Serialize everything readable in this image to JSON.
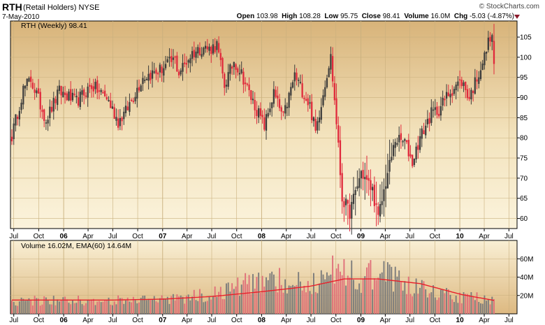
{
  "header": {
    "symbol": "RTH",
    "name": "(Retail Holders)",
    "exchange": "NYSE",
    "date": "7-May-2010",
    "brand": "© StockCharts.com",
    "open_label": "Open",
    "open": "103.98",
    "high_label": "High",
    "high": "108.28",
    "low_label": "Low",
    "low": "95.75",
    "close_label": "Close",
    "close": "98.41",
    "volume_label": "Volume",
    "volume": "16.0M",
    "chg_label": "Chg",
    "chg": "-5.03 (-4.87%)"
  },
  "chart_data": [
    {
      "type": "candlestick",
      "legend": "RTH (Weekly) 98.41",
      "yticks": [
        60,
        65,
        70,
        75,
        80,
        85,
        90,
        95,
        100,
        105
      ],
      "ylim": [
        57.5,
        109
      ],
      "xtick_labels": [
        "Jul",
        "Oct",
        "06",
        "Apr",
        "Jul",
        "Oct",
        "07",
        "Apr",
        "Jul",
        "Oct",
        "08",
        "Apr",
        "Jul",
        "Oct",
        "09",
        "Apr",
        "Jul",
        "Oct",
        "10",
        "Apr",
        "Jul"
      ],
      "waypoints": [
        [
          "2005-06-24",
          80.5
        ],
        [
          "2005-08-05",
          92
        ],
        [
          "2005-09-02",
          94.5
        ],
        [
          "2005-10-28",
          84.5
        ],
        [
          "2005-12-16",
          91.5
        ],
        [
          "2006-02-17",
          89
        ],
        [
          "2006-04-14",
          93
        ],
        [
          "2006-06-09",
          90
        ],
        [
          "2006-07-21",
          84
        ],
        [
          "2006-08-18",
          86.5
        ],
        [
          "2006-10-20",
          95
        ],
        [
          "2006-12-15",
          96.5
        ],
        [
          "2007-02-16",
          99.5
        ],
        [
          "2007-02-28",
          96
        ],
        [
          "2007-04-20",
          101
        ],
        [
          "2007-06-01",
          102.5
        ],
        [
          "2007-06-22",
          102
        ],
        [
          "2007-07-20",
          103
        ],
        [
          "2007-08-17",
          93
        ],
        [
          "2007-09-21",
          99
        ],
        [
          "2007-10-19",
          96
        ],
        [
          "2007-11-23",
          90
        ],
        [
          "2008-01-11",
          83
        ],
        [
          "2008-02-15",
          91
        ],
        [
          "2008-03-21",
          85
        ],
        [
          "2008-05-02",
          95.5
        ],
        [
          "2008-06-27",
          88
        ],
        [
          "2008-07-18",
          81.5
        ],
        [
          "2008-08-29",
          96
        ],
        [
          "2008-09-12",
          100
        ],
        [
          "2008-10-03",
          84
        ],
        [
          "2008-10-24",
          65
        ],
        [
          "2008-11-21",
          61.5
        ],
        [
          "2009-01-02",
          71.5
        ],
        [
          "2009-01-16",
          70
        ],
        [
          "2009-02-13",
          67
        ],
        [
          "2009-03-06",
          60
        ],
        [
          "2009-04-03",
          69
        ],
        [
          "2009-05-08",
          79.5
        ],
        [
          "2009-06-12",
          79
        ],
        [
          "2009-07-10",
          74
        ],
        [
          "2009-08-07",
          80
        ],
        [
          "2009-09-18",
          86
        ],
        [
          "2009-10-16",
          87
        ],
        [
          "2009-11-20",
          91
        ],
        [
          "2009-12-18",
          93
        ],
        [
          "2010-01-08",
          94
        ],
        [
          "2010-02-05",
          90
        ],
        [
          "2010-03-05",
          95
        ],
        [
          "2010-04-02",
          100
        ],
        [
          "2010-04-23",
          105.5
        ],
        [
          "2010-04-30",
          103.98
        ],
        [
          "2010-05-07",
          98.41
        ]
      ]
    },
    {
      "type": "bar",
      "legend": "Volume 16.02M, EMA(60) 14.64M",
      "ytick_labels": [
        "20M",
        "40M",
        "60M"
      ],
      "yticks": [
        20,
        40,
        60
      ],
      "ylim": [
        0,
        80
      ],
      "unit": "M",
      "ema_waypoints": [
        [
          "2005-06-24",
          15
        ],
        [
          "2006-06-30",
          15
        ],
        [
          "2007-01-05",
          16
        ],
        [
          "2007-07-06",
          19
        ],
        [
          "2007-12-28",
          24
        ],
        [
          "2008-06-27",
          30
        ],
        [
          "2008-10-31",
          38
        ],
        [
          "2009-03-06",
          38
        ],
        [
          "2009-08-07",
          33
        ],
        [
          "2010-01-08",
          21
        ],
        [
          "2010-05-07",
          14.64
        ]
      ],
      "vol_waypoints": [
        [
          "2005-06-24",
          14
        ],
        [
          "2006-12-29",
          15
        ],
        [
          "2007-06-29",
          22
        ],
        [
          "2008-01-04",
          38
        ],
        [
          "2008-06-27",
          32
        ],
        [
          "2008-10-24",
          52
        ],
        [
          "2009-01-02",
          38
        ],
        [
          "2009-03-06",
          45
        ],
        [
          "2009-06-26",
          32
        ],
        [
          "2010-01-01",
          18
        ],
        [
          "2010-05-07",
          16.02
        ]
      ]
    }
  ],
  "colors": {
    "up": "#3a3a3a",
    "down": "#e02a3c",
    "ema": "#e8202a",
    "vol_up": "#7c7c7c",
    "vol_down": "#e0707a",
    "header_arrow": "#8b1a2b",
    "grid": "#c9b07e",
    "axis": "#000000"
  }
}
